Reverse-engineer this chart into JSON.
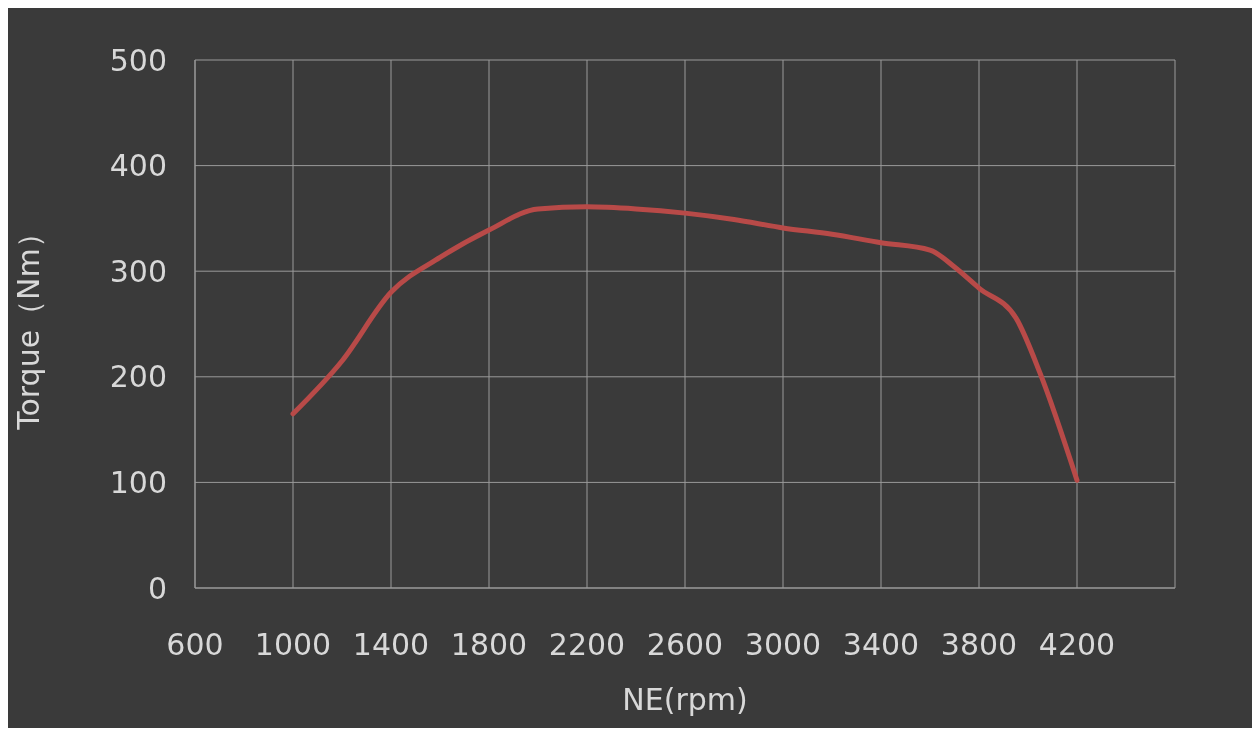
{
  "chart_data": {
    "type": "line",
    "xlabel": "NE(rpm)",
    "ylabel": "Torque（Nm）",
    "x": [
      1000,
      1200,
      1400,
      1600,
      1800,
      2000,
      2200,
      2400,
      2600,
      2800,
      3000,
      3200,
      3400,
      3600,
      3700,
      3800,
      3950,
      4050,
      4200
    ],
    "series": [
      {
        "color": "#b84a48",
        "values": [
          165,
          215,
          280,
          313,
          339,
          359,
          361,
          359,
          355,
          349,
          341,
          335,
          327,
          320,
          304,
          284,
          256,
          203,
          102
        ]
      }
    ],
    "xlim": [
      600,
      4600
    ],
    "xticks": [
      600,
      1000,
      1400,
      1800,
      2200,
      2600,
      3000,
      3400,
      3800,
      4200,
      {
        "value": 4600,
        "label": null
      }
    ],
    "ylim": [
      0,
      500
    ],
    "yticks": [
      0,
      100,
      200,
      300,
      400,
      500
    ],
    "grid": true,
    "marker": "none",
    "line_style": "solid"
  }
}
